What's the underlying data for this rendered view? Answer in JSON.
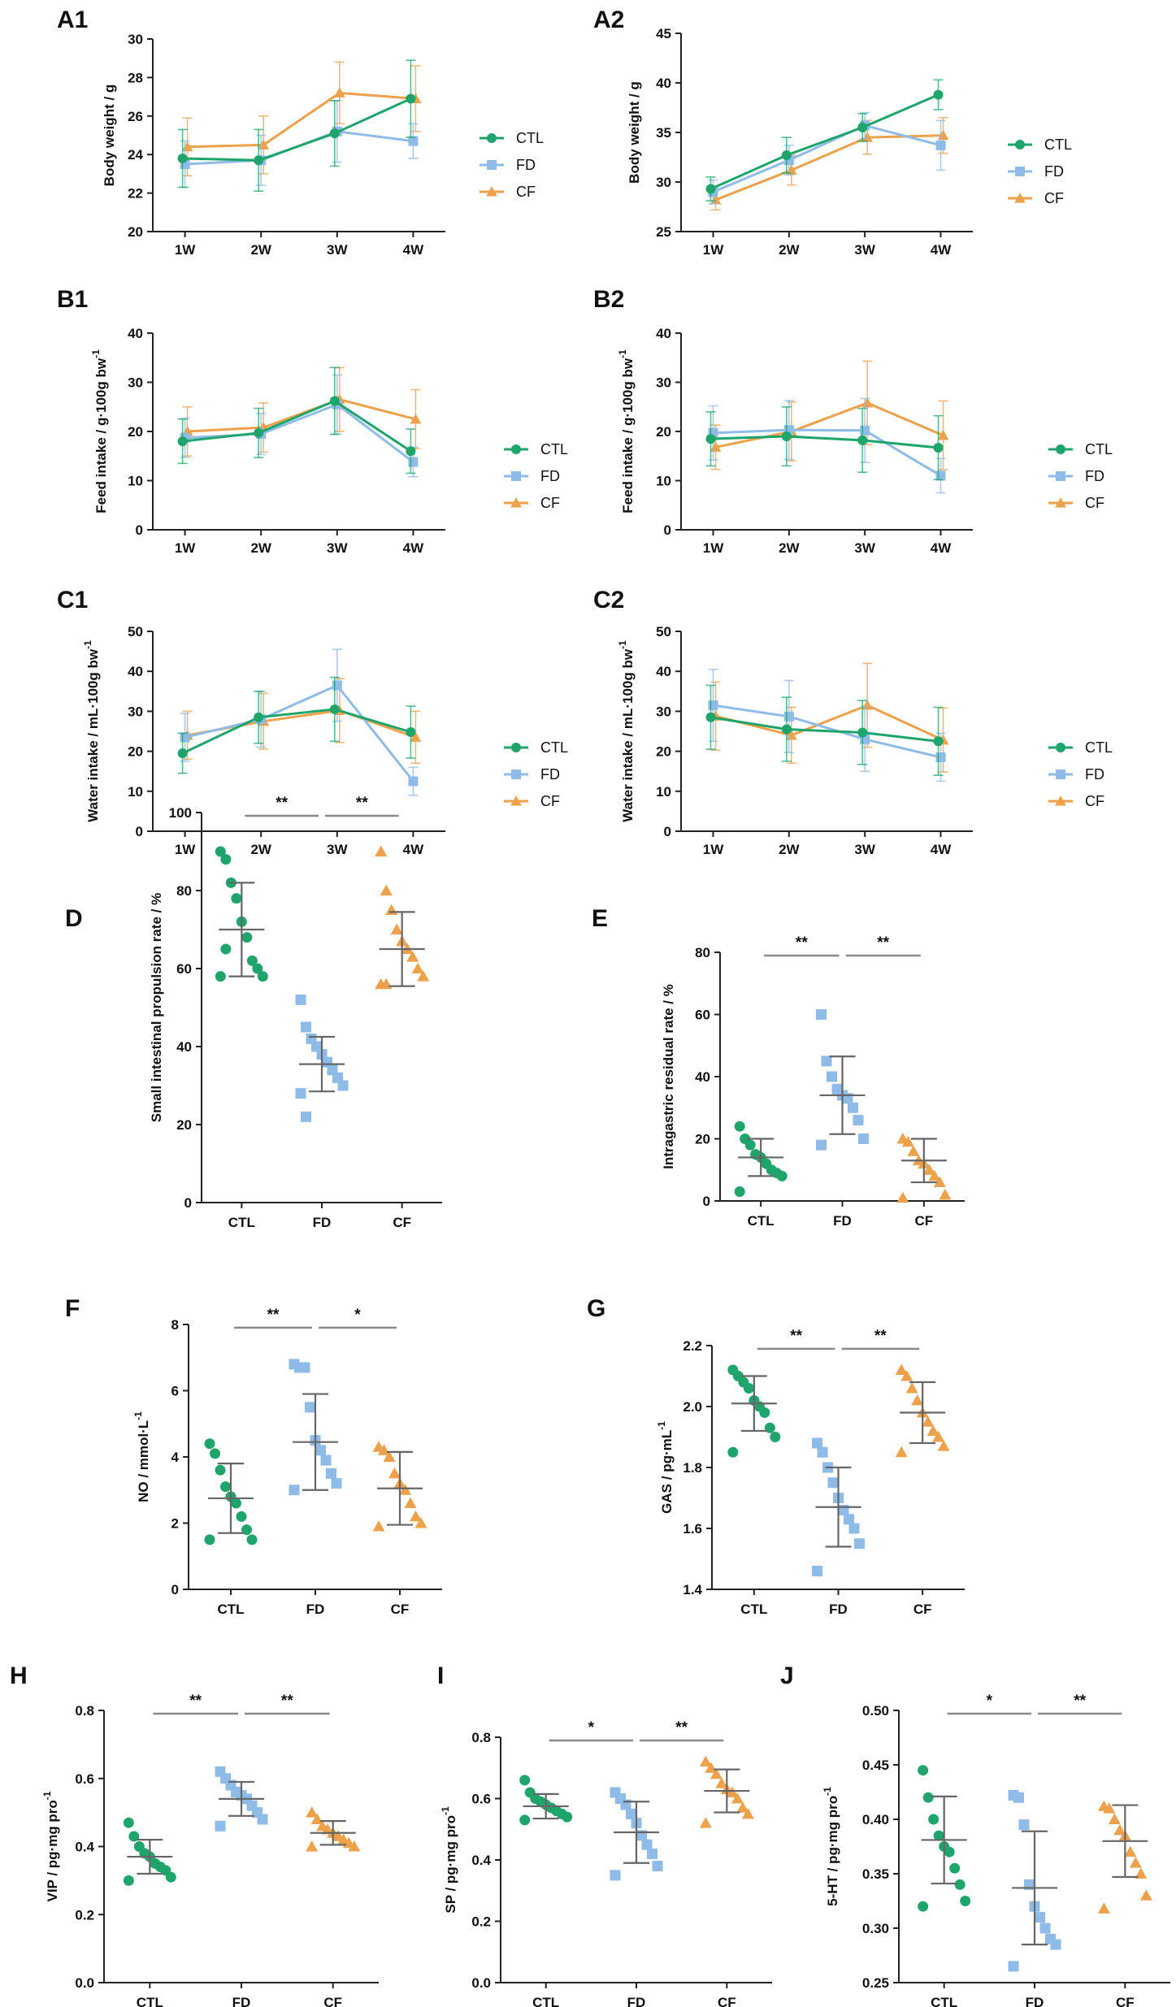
{
  "colors": {
    "CTL": "#1fa56b",
    "FD": "#8fbbe8",
    "CF": "#eca14a",
    "axis": "#222222",
    "bar": "#666666"
  },
  "chart_data": [
    {
      "id": "A1",
      "type": "line",
      "panel_label": "A1",
      "ylabel": "Body weight / g",
      "ylim": [
        20,
        30
      ],
      "yticks": [
        "20",
        "22",
        "24",
        "26",
        "28",
        "30"
      ],
      "categories": [
        "1W",
        "2W",
        "3W",
        "4W"
      ],
      "legend": [
        "CTL",
        "FD",
        "CF"
      ],
      "series": [
        {
          "name": "CTL",
          "values": [
            23.8,
            23.7,
            25.1,
            26.9
          ],
          "err": [
            1.5,
            1.6,
            1.7,
            2.0
          ]
        },
        {
          "name": "FD",
          "values": [
            23.5,
            23.7,
            25.2,
            24.7
          ],
          "err": [
            1.2,
            1.3,
            1.6,
            0.9
          ]
        },
        {
          "name": "CF",
          "values": [
            24.4,
            24.5,
            27.2,
            26.9
          ],
          "err": [
            1.5,
            1.5,
            1.6,
            1.7
          ]
        }
      ]
    },
    {
      "id": "A2",
      "type": "line",
      "panel_label": "A2",
      "ylabel": "Body weight / g",
      "ylim": [
        25,
        45
      ],
      "yticks": [
        "25",
        "30",
        "35",
        "40",
        "45"
      ],
      "categories": [
        "1W",
        "2W",
        "3W",
        "4W"
      ],
      "legend": [
        "CTL",
        "FD",
        "CF"
      ],
      "series": [
        {
          "name": "CTL",
          "values": [
            29.3,
            32.7,
            35.5,
            38.8
          ],
          "err": [
            1.2,
            1.8,
            1.4,
            1.5
          ]
        },
        {
          "name": "FD",
          "values": [
            29.0,
            32.2,
            35.7,
            33.7
          ],
          "err": [
            1.2,
            1.5,
            1.3,
            2.5
          ]
        },
        {
          "name": "CF",
          "values": [
            28.2,
            31.2,
            34.5,
            34.7
          ],
          "err": [
            1.0,
            1.5,
            1.7,
            1.8
          ]
        }
      ]
    },
    {
      "id": "B1",
      "type": "line",
      "panel_label": "B1",
      "ylabel": "Feed intake / g·100g bw",
      "ylabel_sup": "-1",
      "ylim": [
        0,
        40
      ],
      "yticks": [
        "0",
        "10",
        "20",
        "30",
        "40"
      ],
      "categories": [
        "1W",
        "2W",
        "3W",
        "4W"
      ],
      "legend": [
        "CTL",
        "FD",
        "CF"
      ],
      "series": [
        {
          "name": "CTL",
          "values": [
            18.0,
            19.7,
            26.2,
            16.0
          ],
          "err": [
            4.5,
            5.0,
            6.8,
            4.5
          ]
        },
        {
          "name": "FD",
          "values": [
            18.7,
            19.5,
            25.5,
            13.8
          ],
          "err": [
            4.0,
            4.2,
            6.0,
            3.0
          ]
        },
        {
          "name": "CF",
          "values": [
            20.0,
            20.8,
            26.5,
            22.5
          ],
          "err": [
            5.0,
            5.0,
            6.5,
            6.0
          ]
        }
      ]
    },
    {
      "id": "B2",
      "type": "line",
      "panel_label": "B2",
      "ylabel": "Feed intake / g·100g bw",
      "ylabel_sup": "-1",
      "ylim": [
        0,
        40
      ],
      "yticks": [
        "0",
        "10",
        "20",
        "30",
        "40"
      ],
      "categories": [
        "1W",
        "2W",
        "3W",
        "4W"
      ],
      "legend": [
        "CTL",
        "FD",
        "CF"
      ],
      "series": [
        {
          "name": "CTL",
          "values": [
            18.5,
            19.0,
            18.2,
            16.7
          ],
          "err": [
            5.5,
            6.0,
            6.5,
            6.5
          ]
        },
        {
          "name": "FD",
          "values": [
            19.7,
            20.3,
            20.2,
            11.0
          ],
          "err": [
            5.5,
            6.0,
            6.5,
            3.5
          ]
        },
        {
          "name": "CF",
          "values": [
            16.8,
            20.0,
            25.8,
            19.2
          ],
          "err": [
            4.5,
            6.0,
            8.5,
            7.0
          ]
        }
      ]
    },
    {
      "id": "C1",
      "type": "line",
      "panel_label": "C1",
      "ylabel": "Water intake / mL·100g bw",
      "ylabel_sup": "-1",
      "ylim": [
        0,
        50
      ],
      "yticks": [
        "0",
        "10",
        "20",
        "30",
        "40",
        "50"
      ],
      "categories": [
        "1W",
        "2W",
        "3W",
        "4W"
      ],
      "legend": [
        "CTL",
        "FD",
        "CF"
      ],
      "series": [
        {
          "name": "CTL",
          "values": [
            19.5,
            28.5,
            30.5,
            24.8
          ],
          "err": [
            5.0,
            6.5,
            8.0,
            6.5
          ]
        },
        {
          "name": "FD",
          "values": [
            23.5,
            28.0,
            36.5,
            12.5
          ],
          "err": [
            6.0,
            7.0,
            9.0,
            3.5
          ]
        },
        {
          "name": "CF",
          "values": [
            24.0,
            27.5,
            30.2,
            23.5
          ],
          "err": [
            6.0,
            7.0,
            8.0,
            6.5
          ]
        }
      ]
    },
    {
      "id": "C2",
      "type": "line",
      "panel_label": "C2",
      "ylabel": "Water intake / mL·100g bw",
      "ylabel_sup": "-1",
      "ylim": [
        0,
        50
      ],
      "yticks": [
        "0",
        "10",
        "20",
        "30",
        "40",
        "50"
      ],
      "categories": [
        "1W",
        "2W",
        "3W",
        "4W"
      ],
      "legend": [
        "CTL",
        "FD",
        "CF"
      ],
      "series": [
        {
          "name": "CTL",
          "values": [
            28.5,
            25.5,
            24.7,
            22.5
          ],
          "err": [
            8.0,
            8.0,
            8.0,
            8.5
          ]
        },
        {
          "name": "FD",
          "values": [
            31.5,
            28.7,
            23.0,
            18.5
          ],
          "err": [
            9.0,
            9.0,
            8.0,
            6.0
          ]
        },
        {
          "name": "CF",
          "values": [
            28.8,
            24.0,
            31.5,
            22.8
          ],
          "err": [
            8.5,
            7.0,
            10.5,
            8.0
          ]
        }
      ]
    },
    {
      "id": "D",
      "type": "scatter",
      "panel_label": "D",
      "ylabel": "Small intestinal propulsion rate / %",
      "ylim": [
        0,
        100
      ],
      "yticks": [
        "0",
        "20",
        "40",
        "60",
        "80",
        "100"
      ],
      "categories": [
        "CTL",
        "FD",
        "CF"
      ],
      "groups": [
        {
          "name": "CTL",
          "mean": 70,
          "sd": 12,
          "points": [
            90,
            88,
            82,
            78,
            72,
            68,
            62,
            60,
            58,
            58,
            65
          ]
        },
        {
          "name": "FD",
          "mean": 35.5,
          "sd": 7,
          "points": [
            52,
            45,
            42,
            40,
            38,
            36,
            34,
            32,
            30,
            28,
            22
          ]
        },
        {
          "name": "CF",
          "mean": 65,
          "sd": 9.5,
          "points": [
            90,
            80,
            75,
            70,
            67,
            65,
            63,
            60,
            58,
            56,
            56
          ]
        }
      ],
      "significance": [
        {
          "from": "CTL",
          "to": "FD",
          "label": "**"
        },
        {
          "from": "FD",
          "to": "CF",
          "label": "**"
        }
      ]
    },
    {
      "id": "E",
      "type": "scatter",
      "panel_label": "E",
      "ylabel": "Intragastric residual rate / %",
      "ylim": [
        0,
        80
      ],
      "yticks": [
        "0",
        "20",
        "40",
        "60",
        "80"
      ],
      "categories": [
        "CTL",
        "FD",
        "CF"
      ],
      "groups": [
        {
          "name": "CTL",
          "mean": 14,
          "sd": 6,
          "points": [
            24,
            20,
            18,
            15,
            14,
            12,
            10,
            9,
            8,
            3
          ]
        },
        {
          "name": "FD",
          "mean": 34,
          "sd": 12.5,
          "points": [
            60,
            45,
            40,
            36,
            34,
            33,
            30,
            26,
            20,
            18
          ]
        },
        {
          "name": "CF",
          "mean": 13,
          "sd": 7,
          "points": [
            20,
            19,
            16,
            13,
            12,
            10,
            8,
            6,
            2,
            1
          ]
        }
      ],
      "significance": [
        {
          "from": "CTL",
          "to": "FD",
          "label": "**"
        },
        {
          "from": "FD",
          "to": "CF",
          "label": "**"
        }
      ]
    },
    {
      "id": "F",
      "type": "scatter",
      "panel_label": "F",
      "ylabel": "NO / mmol·L",
      "ylabel_sup": "-1",
      "ylim": [
        0,
        8
      ],
      "yticks": [
        "0",
        "2",
        "4",
        "6",
        "8"
      ],
      "categories": [
        "CTL",
        "FD",
        "CF"
      ],
      "groups": [
        {
          "name": "CTL",
          "mean": 2.75,
          "sd": 1.05,
          "points": [
            4.4,
            4.1,
            3.6,
            3.1,
            2.8,
            2.6,
            2.2,
            1.8,
            1.5,
            1.5
          ]
        },
        {
          "name": "FD",
          "mean": 4.45,
          "sd": 1.45,
          "points": [
            6.8,
            6.7,
            6.7,
            5.5,
            4.5,
            4.2,
            3.9,
            3.5,
            3.2,
            3.0
          ]
        },
        {
          "name": "CF",
          "mean": 3.05,
          "sd": 1.1,
          "points": [
            4.3,
            4.2,
            4.0,
            3.5,
            3.2,
            3.0,
            2.6,
            2.2,
            2.0,
            1.9
          ]
        }
      ],
      "significance": [
        {
          "from": "CTL",
          "to": "FD",
          "label": "**"
        },
        {
          "from": "FD",
          "to": "CF",
          "label": "*"
        }
      ]
    },
    {
      "id": "G",
      "type": "scatter",
      "panel_label": "G",
      "ylabel": "GAS / pg·mL",
      "ylabel_sup": "-1",
      "ylim": [
        1.4,
        2.2
      ],
      "yticks": [
        "1.4",
        "1.6",
        "1.8",
        "2.0",
        "2.2"
      ],
      "categories": [
        "CTL",
        "FD",
        "CF"
      ],
      "groups": [
        {
          "name": "CTL",
          "mean": 2.01,
          "sd": 0.09,
          "points": [
            2.12,
            2.1,
            2.08,
            2.06,
            2.02,
            2.0,
            1.98,
            1.93,
            1.9,
            1.85
          ]
        },
        {
          "name": "FD",
          "mean": 1.67,
          "sd": 0.13,
          "points": [
            1.88,
            1.85,
            1.8,
            1.75,
            1.7,
            1.66,
            1.63,
            1.6,
            1.55,
            1.46
          ]
        },
        {
          "name": "CF",
          "mean": 1.98,
          "sd": 0.1,
          "points": [
            2.12,
            2.1,
            2.06,
            2.02,
            1.98,
            1.95,
            1.92,
            1.9,
            1.87,
            1.85
          ]
        }
      ],
      "significance": [
        {
          "from": "CTL",
          "to": "FD",
          "label": "**"
        },
        {
          "from": "FD",
          "to": "CF",
          "label": "**"
        }
      ]
    },
    {
      "id": "H",
      "type": "scatter",
      "panel_label": "H",
      "ylabel": "VIP / pg·mg pro",
      "ylabel_sup": "-1",
      "ylim": [
        0.0,
        0.8
      ],
      "yticks": [
        "0.0",
        "0.2",
        "0.4",
        "0.6",
        "0.8"
      ],
      "categories": [
        "CTL",
        "FD",
        "CF"
      ],
      "groups": [
        {
          "name": "CTL",
          "mean": 0.37,
          "sd": 0.05,
          "points": [
            0.47,
            0.43,
            0.4,
            0.38,
            0.37,
            0.35,
            0.34,
            0.33,
            0.31,
            0.3
          ]
        },
        {
          "name": "FD",
          "mean": 0.54,
          "sd": 0.05,
          "points": [
            0.62,
            0.6,
            0.58,
            0.56,
            0.55,
            0.54,
            0.52,
            0.5,
            0.48,
            0.46
          ]
        },
        {
          "name": "CF",
          "mean": 0.44,
          "sd": 0.035,
          "points": [
            0.5,
            0.48,
            0.46,
            0.45,
            0.44,
            0.43,
            0.42,
            0.41,
            0.4,
            0.4
          ]
        }
      ],
      "significance": [
        {
          "from": "CTL",
          "to": "FD",
          "label": "**"
        },
        {
          "from": "FD",
          "to": "CF",
          "label": "**"
        }
      ]
    },
    {
      "id": "I",
      "type": "scatter",
      "panel_label": "I",
      "ylabel": "SP / pg·mg pro",
      "ylabel_sup": "-1",
      "ylim": [
        0.0,
        0.8
      ],
      "yticks": [
        "0.0",
        "0.2",
        "0.4",
        "0.6",
        "0.8"
      ],
      "categories": [
        "CTL",
        "FD",
        "CF"
      ],
      "groups": [
        {
          "name": "CTL",
          "mean": 0.575,
          "sd": 0.04,
          "points": [
            0.66,
            0.62,
            0.6,
            0.59,
            0.58,
            0.57,
            0.56,
            0.55,
            0.54,
            0.53
          ]
        },
        {
          "name": "FD",
          "mean": 0.49,
          "sd": 0.1,
          "points": [
            0.62,
            0.6,
            0.58,
            0.55,
            0.52,
            0.48,
            0.45,
            0.42,
            0.38,
            0.35
          ]
        },
        {
          "name": "CF",
          "mean": 0.625,
          "sd": 0.07,
          "points": [
            0.72,
            0.7,
            0.68,
            0.65,
            0.63,
            0.62,
            0.6,
            0.57,
            0.55,
            0.52
          ]
        }
      ],
      "significance": [
        {
          "from": "CTL",
          "to": "FD",
          "label": "*"
        },
        {
          "from": "FD",
          "to": "CF",
          "label": "**"
        }
      ]
    },
    {
      "id": "J",
      "type": "scatter",
      "panel_label": "J",
      "ylabel": "5-HT / pg·mg pro",
      "ylabel_sup": "-1",
      "ylim": [
        0.25,
        0.5
      ],
      "yticks": [
        "0.25",
        "0.30",
        "0.35",
        "0.40",
        "0.45",
        "0.50"
      ],
      "categories": [
        "CTL",
        "FD",
        "CF"
      ],
      "groups": [
        {
          "name": "CTL",
          "mean": 0.381,
          "sd": 0.04,
          "points": [
            0.445,
            0.42,
            0.4,
            0.385,
            0.375,
            0.37,
            0.355,
            0.34,
            0.325,
            0.32
          ]
        },
        {
          "name": "FD",
          "mean": 0.337,
          "sd": 0.052,
          "points": [
            0.422,
            0.42,
            0.395,
            0.34,
            0.32,
            0.31,
            0.3,
            0.29,
            0.285,
            0.265
          ]
        },
        {
          "name": "CF",
          "mean": 0.38,
          "sd": 0.033,
          "points": [
            0.412,
            0.41,
            0.4,
            0.39,
            0.385,
            0.37,
            0.36,
            0.35,
            0.33,
            0.318
          ]
        }
      ],
      "significance": [
        {
          "from": "CTL",
          "to": "FD",
          "label": "*"
        },
        {
          "from": "FD",
          "to": "CF",
          "label": "**"
        }
      ]
    }
  ]
}
